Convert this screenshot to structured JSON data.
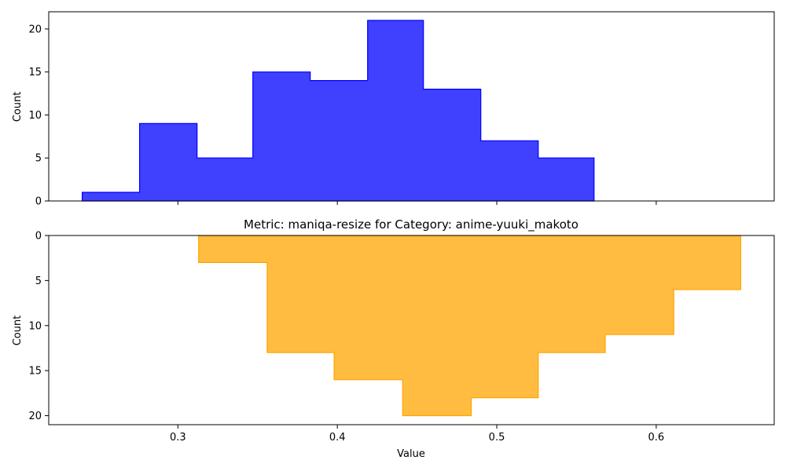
{
  "chart_data": {
    "type": "histogram",
    "title": "Metric: maniqa-resize for Category: anime-yuuki_makoto",
    "xlabel": "Value",
    "xlim": [
      0.219,
      0.674
    ],
    "xticks": [
      0.3,
      0.4,
      0.5,
      0.6
    ],
    "xtick_labels": [
      "0.3",
      "0.4",
      "0.5",
      "0.6"
    ],
    "panels": [
      {
        "name": "top",
        "ylabel": "Count",
        "ylim": [
          0,
          22
        ],
        "inverted": false,
        "yticks": [
          0,
          5,
          10,
          15,
          20
        ],
        "ytick_labels": [
          "0",
          "5",
          "10",
          "15",
          "20"
        ],
        "color": "#0000ff",
        "bin_edges": [
          0.24,
          0.276,
          0.312,
          0.347,
          0.383,
          0.419,
          0.454,
          0.49,
          0.526,
          0.561
        ],
        "counts": [
          1,
          9,
          5,
          15,
          14,
          21,
          13,
          7,
          5
        ]
      },
      {
        "name": "bottom",
        "ylabel": "Count",
        "ylim": [
          0,
          21
        ],
        "inverted": true,
        "yticks": [
          0,
          5,
          10,
          15,
          20
        ],
        "ytick_labels": [
          "0",
          "5",
          "10",
          "15",
          "20"
        ],
        "color": "#ffa500",
        "bin_edges": [
          0.313,
          0.356,
          0.398,
          0.441,
          0.484,
          0.526,
          0.568,
          0.611,
          0.653
        ],
        "counts": [
          3,
          13,
          16,
          20,
          18,
          13,
          11,
          6
        ]
      }
    ]
  }
}
